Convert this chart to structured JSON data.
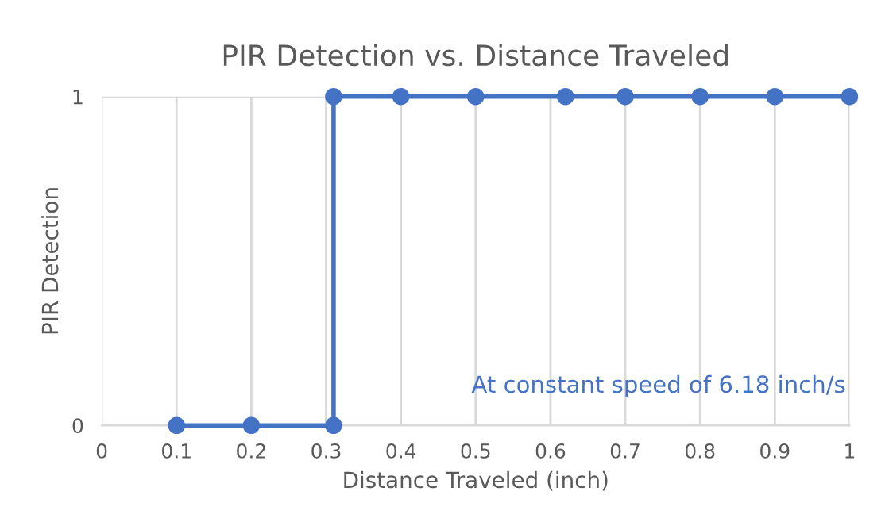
{
  "chart_data": {
    "type": "line",
    "title": "PIR Detection vs. Distance Traveled",
    "xlabel": "Distance Traveled (inch)",
    "ylabel": "PIR Detection",
    "x": [
      0.1,
      0.2,
      0.31,
      0.31,
      0.4,
      0.5,
      0.62,
      0.7,
      0.8,
      0.9,
      1
    ],
    "series": [
      {
        "color": "#4472c4",
        "values": [
          0,
          0,
          0,
          1,
          1,
          1,
          1,
          1,
          1,
          1,
          1
        ]
      }
    ],
    "xlim": [
      0,
      1
    ],
    "xticks": [
      0,
      0.1,
      0.2,
      0.3,
      0.4,
      0.5,
      0.6,
      0.7,
      0.8,
      0.9,
      1
    ],
    "ylim": [
      0,
      1
    ],
    "yticks": [
      0,
      1
    ],
    "grid": true,
    "marker": "circle",
    "line_style": "solid",
    "annotations": [
      "At constant speed of 6.18 inch/s"
    ]
  }
}
